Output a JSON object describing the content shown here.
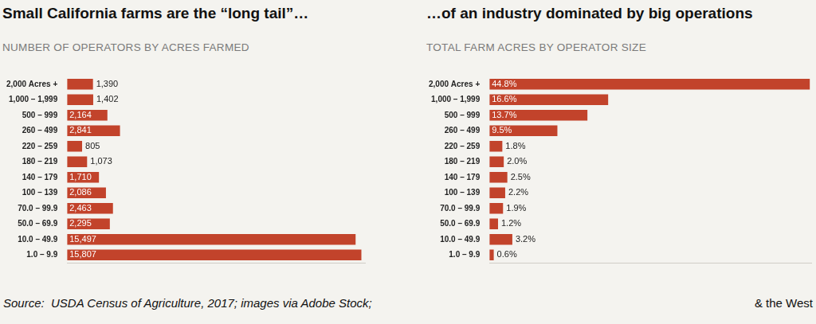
{
  "chart_data": [
    {
      "type": "bar",
      "orientation": "horizontal",
      "title": "Small California farms are the “long tail”…",
      "subtitle": "NUMBER OF OPERATORS BY ACRES FARMED",
      "categories": [
        "2,000 Acres +",
        "1,000 – 1,999",
        "500 – 999",
        "260 – 499",
        "220 – 259",
        "180 – 219",
        "140 – 179",
        "100 – 139",
        "70.0 – 99.9",
        "50.0 – 69.9",
        "10.0 – 49.9",
        "1.0 – 9.9"
      ],
      "values": [
        1390,
        1402,
        2164,
        2841,
        805,
        1073,
        1710,
        2086,
        2463,
        2295,
        15497,
        15807
      ],
      "value_labels": [
        "1,390",
        "1,402",
        "2,164",
        "2,841",
        "805",
        "1,073",
        "1,710",
        "2,086",
        "2,463",
        "2,295",
        "15,497",
        "15,807"
      ],
      "data_labels": true,
      "color": "#c2432b",
      "xlim": [
        0,
        16000
      ],
      "grid": false,
      "tick_labels": "y",
      "annotations": [
        "Source:  USDA Census of Agriculture, 2017; images via Adobe Stock;"
      ]
    },
    {
      "type": "bar",
      "orientation": "horizontal",
      "title": "…of an industry dominated by big operations",
      "subtitle": "TOTAL FARM ACRES BY OPERATOR SIZE",
      "categories": [
        "2,000 Acres +",
        "1,000 – 1,999",
        "500 – 999",
        "260 – 499",
        "220 – 259",
        "180 – 219",
        "140 – 179",
        "100 – 139",
        "70.0 – 99.9",
        "50.0 – 69.9",
        "10.0 – 49.9",
        "1.0 – 9.9"
      ],
      "values": [
        44.8,
        16.6,
        13.7,
        9.5,
        1.8,
        2.0,
        2.5,
        2.2,
        1.9,
        1.2,
        3.2,
        0.6
      ],
      "value_labels": [
        "44.8%",
        "16.6%",
        "13.7%",
        "9.5%",
        "1.8%",
        "2.0%",
        "2.5%",
        "2.2%",
        "1.9%",
        "1.2%",
        "3.2%",
        "0.6%"
      ],
      "data_labels": true,
      "color": "#c2432b",
      "xlim": [
        0,
        45
      ],
      "grid": false,
      "tick_labels": "y",
      "annotations": [
        "& the West"
      ]
    }
  ]
}
